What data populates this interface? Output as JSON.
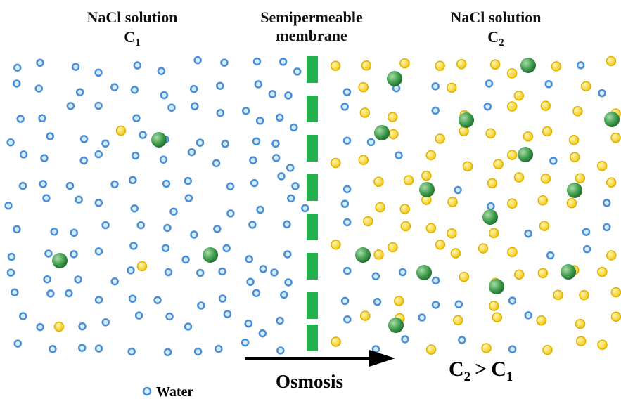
{
  "left": {
    "title": "NaCl solution",
    "symbol": "C",
    "subscript": "1"
  },
  "membrane": {
    "line1": "Semipermeable",
    "line2": "membrane"
  },
  "right": {
    "title": "NaCl solution",
    "symbol": "C",
    "subscript": "2"
  },
  "arrow": {
    "label": "Osmosis"
  },
  "legend": {
    "water": "Water"
  },
  "relation": {
    "left_symbol": "C",
    "left_subscript": "2",
    "operator": ">",
    "right_symbol": "C",
    "right_subscript": "1"
  }
}
